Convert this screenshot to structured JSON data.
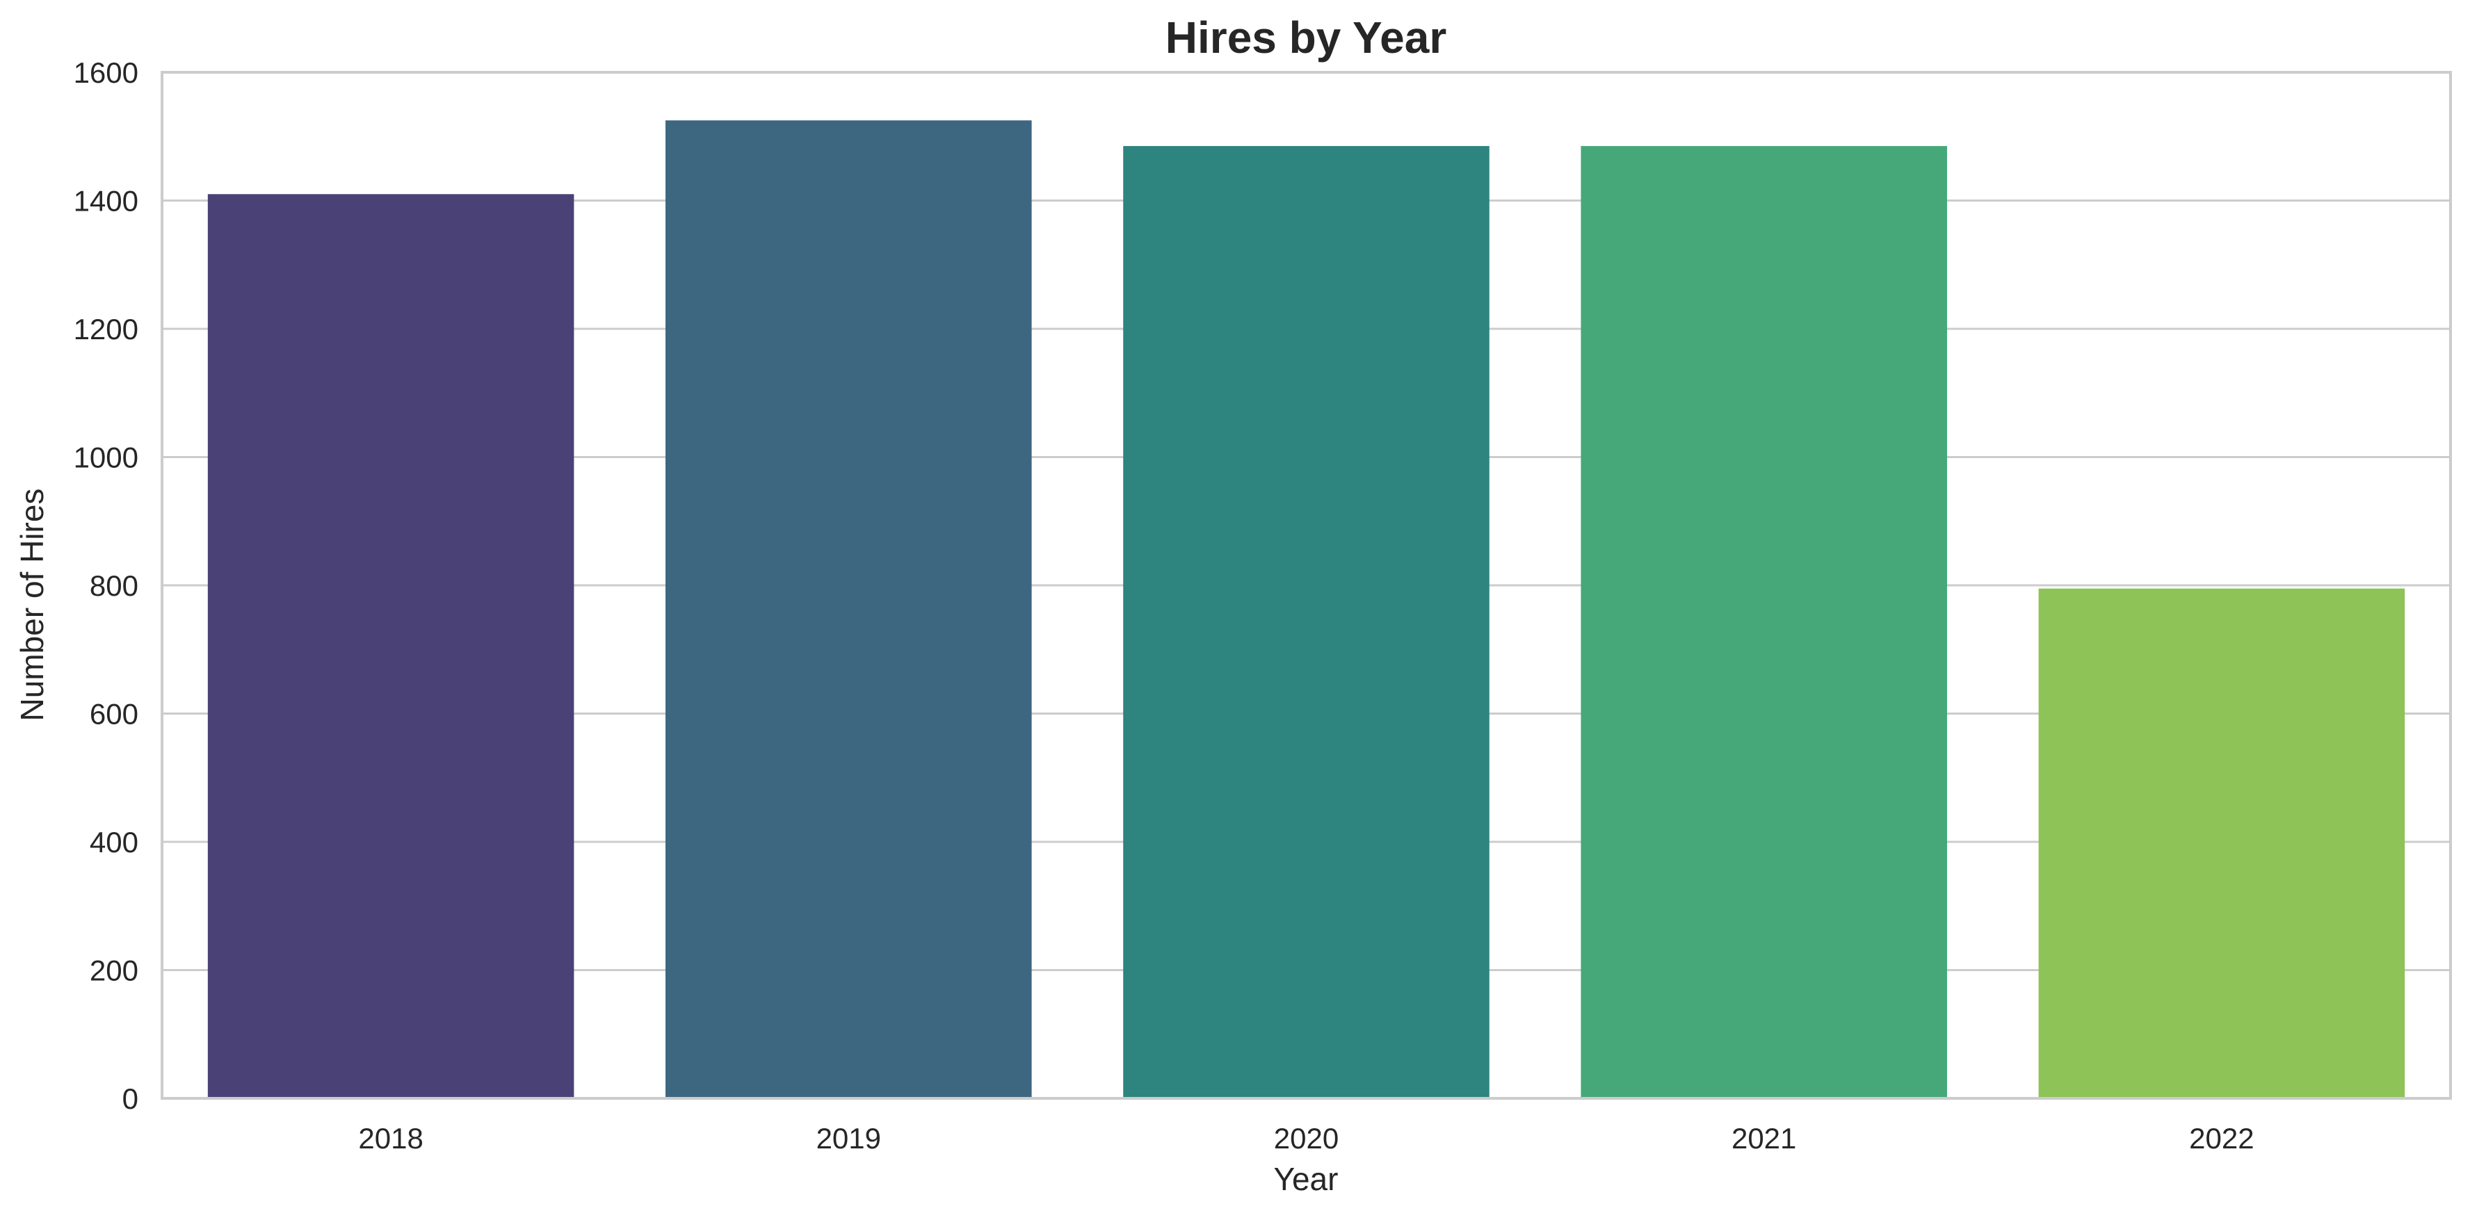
{
  "chart_data": {
    "type": "bar",
    "title": "Hires by Year",
    "xlabel": "Year",
    "ylabel": "Number of Hires",
    "categories": [
      "2018",
      "2019",
      "2020",
      "2021",
      "2022"
    ],
    "values": [
      1410,
      1525,
      1485,
      1485,
      795
    ],
    "colors": [
      "#4a4176",
      "#3d6681",
      "#2e847e",
      "#46a878",
      "#8dc357"
    ],
    "ylim": [
      0,
      1600
    ],
    "yticks": [
      0,
      200,
      400,
      600,
      800,
      1000,
      1200,
      1400,
      1600
    ],
    "grid": "horizontal",
    "grid_color": "#cccccc",
    "frame_color": "#cccccc"
  }
}
